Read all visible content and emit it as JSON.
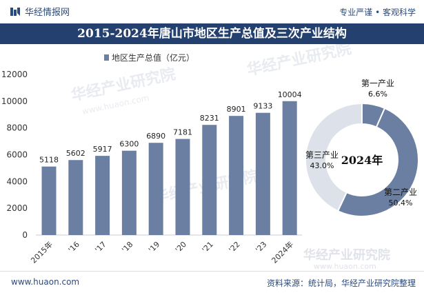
{
  "header": {
    "brand": "华经情报网",
    "slogan": "专业严谨 • 客观科学",
    "title": "2015-2024年唐山市地区生产总值及三次产业结构"
  },
  "watermark": "华经产业研究院",
  "watermark_url": "www.huaon.com",
  "footer": {
    "url": "www.huaon.com",
    "source": "资料来源：统计局，华经产业研究院整理"
  },
  "colors": {
    "bar": "#6b7fa3",
    "header_bg": "#24406e",
    "donut_light": "#dde2ea",
    "donut_dark": "#6b7fa3"
  },
  "chart_data": [
    {
      "type": "bar",
      "categories": [
        "2015年",
        "'16",
        "'17",
        "'18",
        "'19",
        "'20",
        "'21",
        "'22",
        "'23",
        "2024年"
      ],
      "series": [
        {
          "name": "地区生产总值（亿元）",
          "values": [
            5118,
            5602,
            5917,
            6300,
            6890,
            7181,
            8231,
            8901,
            9133,
            10004
          ]
        }
      ],
      "yticks": [
        "0",
        "2000",
        "4000",
        "6000",
        "8000",
        "10000",
        "12000"
      ],
      "ylim": [
        0,
        12000
      ],
      "legend": "top"
    },
    {
      "type": "pie",
      "center_label": "2024年",
      "slices": [
        {
          "name": "第一产业",
          "value": 6.6,
          "label": "6.6%",
          "color": "#6b7fa3"
        },
        {
          "name": "第二产业",
          "value": 50.4,
          "label": "50.4%",
          "color": "#6b7fa3"
        },
        {
          "name": "第三产业",
          "value": 43.0,
          "label": "43.0%",
          "color": "#dde2ea"
        }
      ]
    }
  ]
}
